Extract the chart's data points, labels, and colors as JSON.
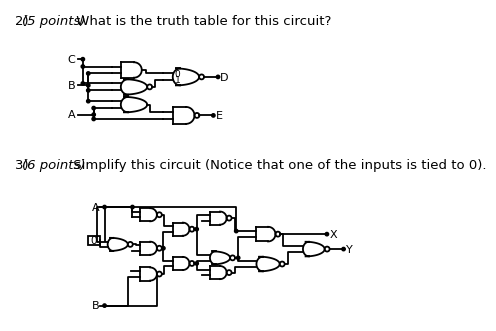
{
  "bg_color": "#ffffff",
  "lw": 1.3,
  "title1_normal": "2) ",
  "title1_italic": "(5 points)",
  "title1_rest": " What is the truth table for this circuit?",
  "title2_normal": "3) ",
  "title2_italic": "(6 points)",
  "title2_rest": " Simplify this circuit (Notice that one of the inputs is tied to 0).",
  "font_size": 9.5
}
